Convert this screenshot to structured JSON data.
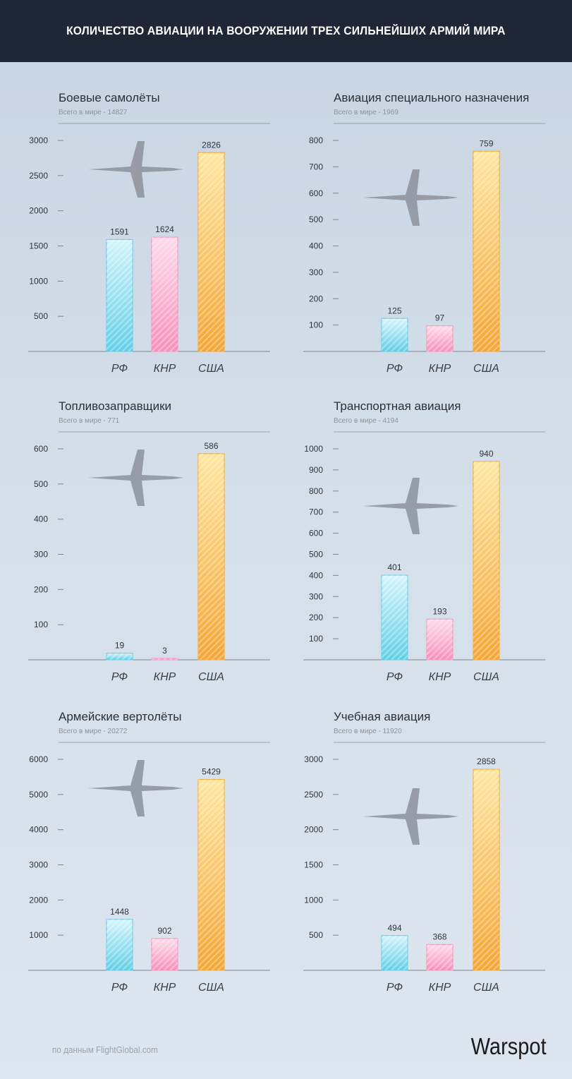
{
  "header": {
    "title": "КОЛИЧЕСТВО АВИАЦИИ НА ВООРУЖЕНИИ ТРЕХ СИЛЬНЕЙШИХ АРМИЙ МИРА"
  },
  "colors": {
    "header_bg": "#1f2636",
    "rf": "#5ccde6",
    "knr": "#f78fb8",
    "usa": "#f5a533"
  },
  "chart_data": [
    {
      "type": "bar",
      "title": "Боевые самолёты",
      "subtitle": "Всего в мире - 14827",
      "categories": [
        "РФ",
        "КНР",
        "США"
      ],
      "values": [
        1591,
        1624,
        2826
      ],
      "ylim": [
        0,
        3000
      ],
      "yticks": [
        500,
        1000,
        1500,
        2000,
        2500,
        3000
      ],
      "icon": "fighter-jet-icon"
    },
    {
      "type": "bar",
      "title": "Авиация специального назначения",
      "subtitle": "Всего в мире - 1969",
      "categories": [
        "РФ",
        "КНР",
        "США"
      ],
      "values": [
        125,
        97,
        759
      ],
      "ylim": [
        0,
        800
      ],
      "yticks": [
        100,
        200,
        300,
        400,
        500,
        600,
        700,
        800
      ],
      "icon": "awacs-plane-icon"
    },
    {
      "type": "bar",
      "title": "Топливозаправщики",
      "subtitle": "Всего в мире - 771",
      "categories": [
        "РФ",
        "КНР",
        "США"
      ],
      "values": [
        19,
        3,
        586
      ],
      "ylim": [
        0,
        600
      ],
      "yticks": [
        100,
        200,
        300,
        400,
        500,
        600
      ],
      "icon": "tanker-plane-icon"
    },
    {
      "type": "bar",
      "title": "Транспортная авиация",
      "subtitle": "Всего в мире - 4194",
      "categories": [
        "РФ",
        "КНР",
        "США"
      ],
      "values": [
        401,
        193,
        940
      ],
      "ylim": [
        0,
        1000
      ],
      "yticks": [
        100,
        200,
        300,
        400,
        500,
        600,
        700,
        800,
        900,
        1000
      ],
      "icon": "transport-plane-icon"
    },
    {
      "type": "bar",
      "title": "Армейские вертолёты",
      "subtitle": "Всего в мире - 20272",
      "categories": [
        "РФ",
        "КНР",
        "США"
      ],
      "values": [
        1448,
        902,
        5429
      ],
      "ylim": [
        0,
        6000
      ],
      "yticks": [
        1000,
        2000,
        3000,
        4000,
        5000,
        6000
      ],
      "icon": "helicopter-icon"
    },
    {
      "type": "bar",
      "title": "Учебная авиация",
      "subtitle": "Всего в мире - 11920",
      "categories": [
        "РФ",
        "КНР",
        "США"
      ],
      "values": [
        494,
        368,
        2858
      ],
      "ylim": [
        0,
        3000
      ],
      "yticks": [
        500,
        1000,
        1500,
        2000,
        2500,
        3000
      ],
      "icon": "trainer-jet-icon"
    }
  ],
  "footer": {
    "source": "по данным FlightGlobal.com",
    "brand": "Warspot"
  }
}
